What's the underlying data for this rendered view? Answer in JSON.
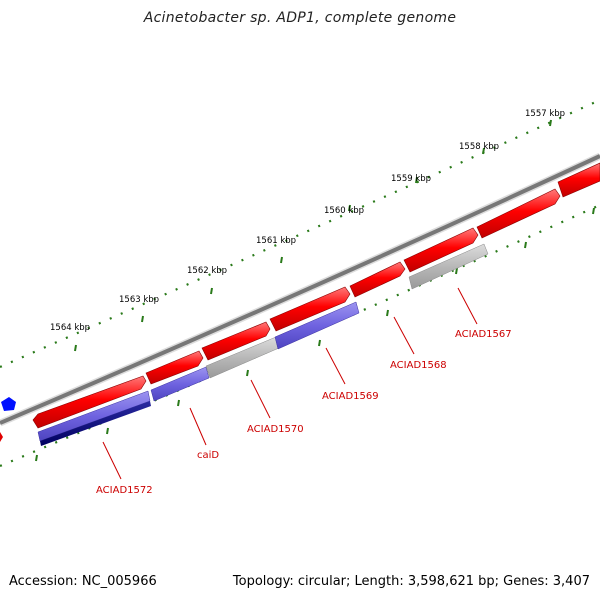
{
  "title": "Acinetobacter sp. ADP1, complete genome",
  "footer": {
    "accession": "Accession: NC_005966",
    "topology": "Topology: circular; Length: 3,598,621 bp; Genes: 3,407"
  },
  "ticks": [
    "1557 kbp",
    "1558 kbp",
    "1559 kbp",
    "1560 kbp",
    "1561 kbp",
    "1562 kbp",
    "1563 kbp",
    "1564 kbp"
  ],
  "genes": [
    "ACIAD1567",
    "ACIAD1568",
    "ACIAD1569",
    "ACIAD1570",
    "caiD",
    "ACIAD1572"
  ],
  "colors": {
    "forward": "#ff0000",
    "reverse_blue": "#6f63e0",
    "reverse_dark": "#000080",
    "reverse_gray": "#b8b8b8",
    "backbone": "#777777",
    "ticks": "#2a7a1a",
    "gene_label": "#cc0000"
  }
}
